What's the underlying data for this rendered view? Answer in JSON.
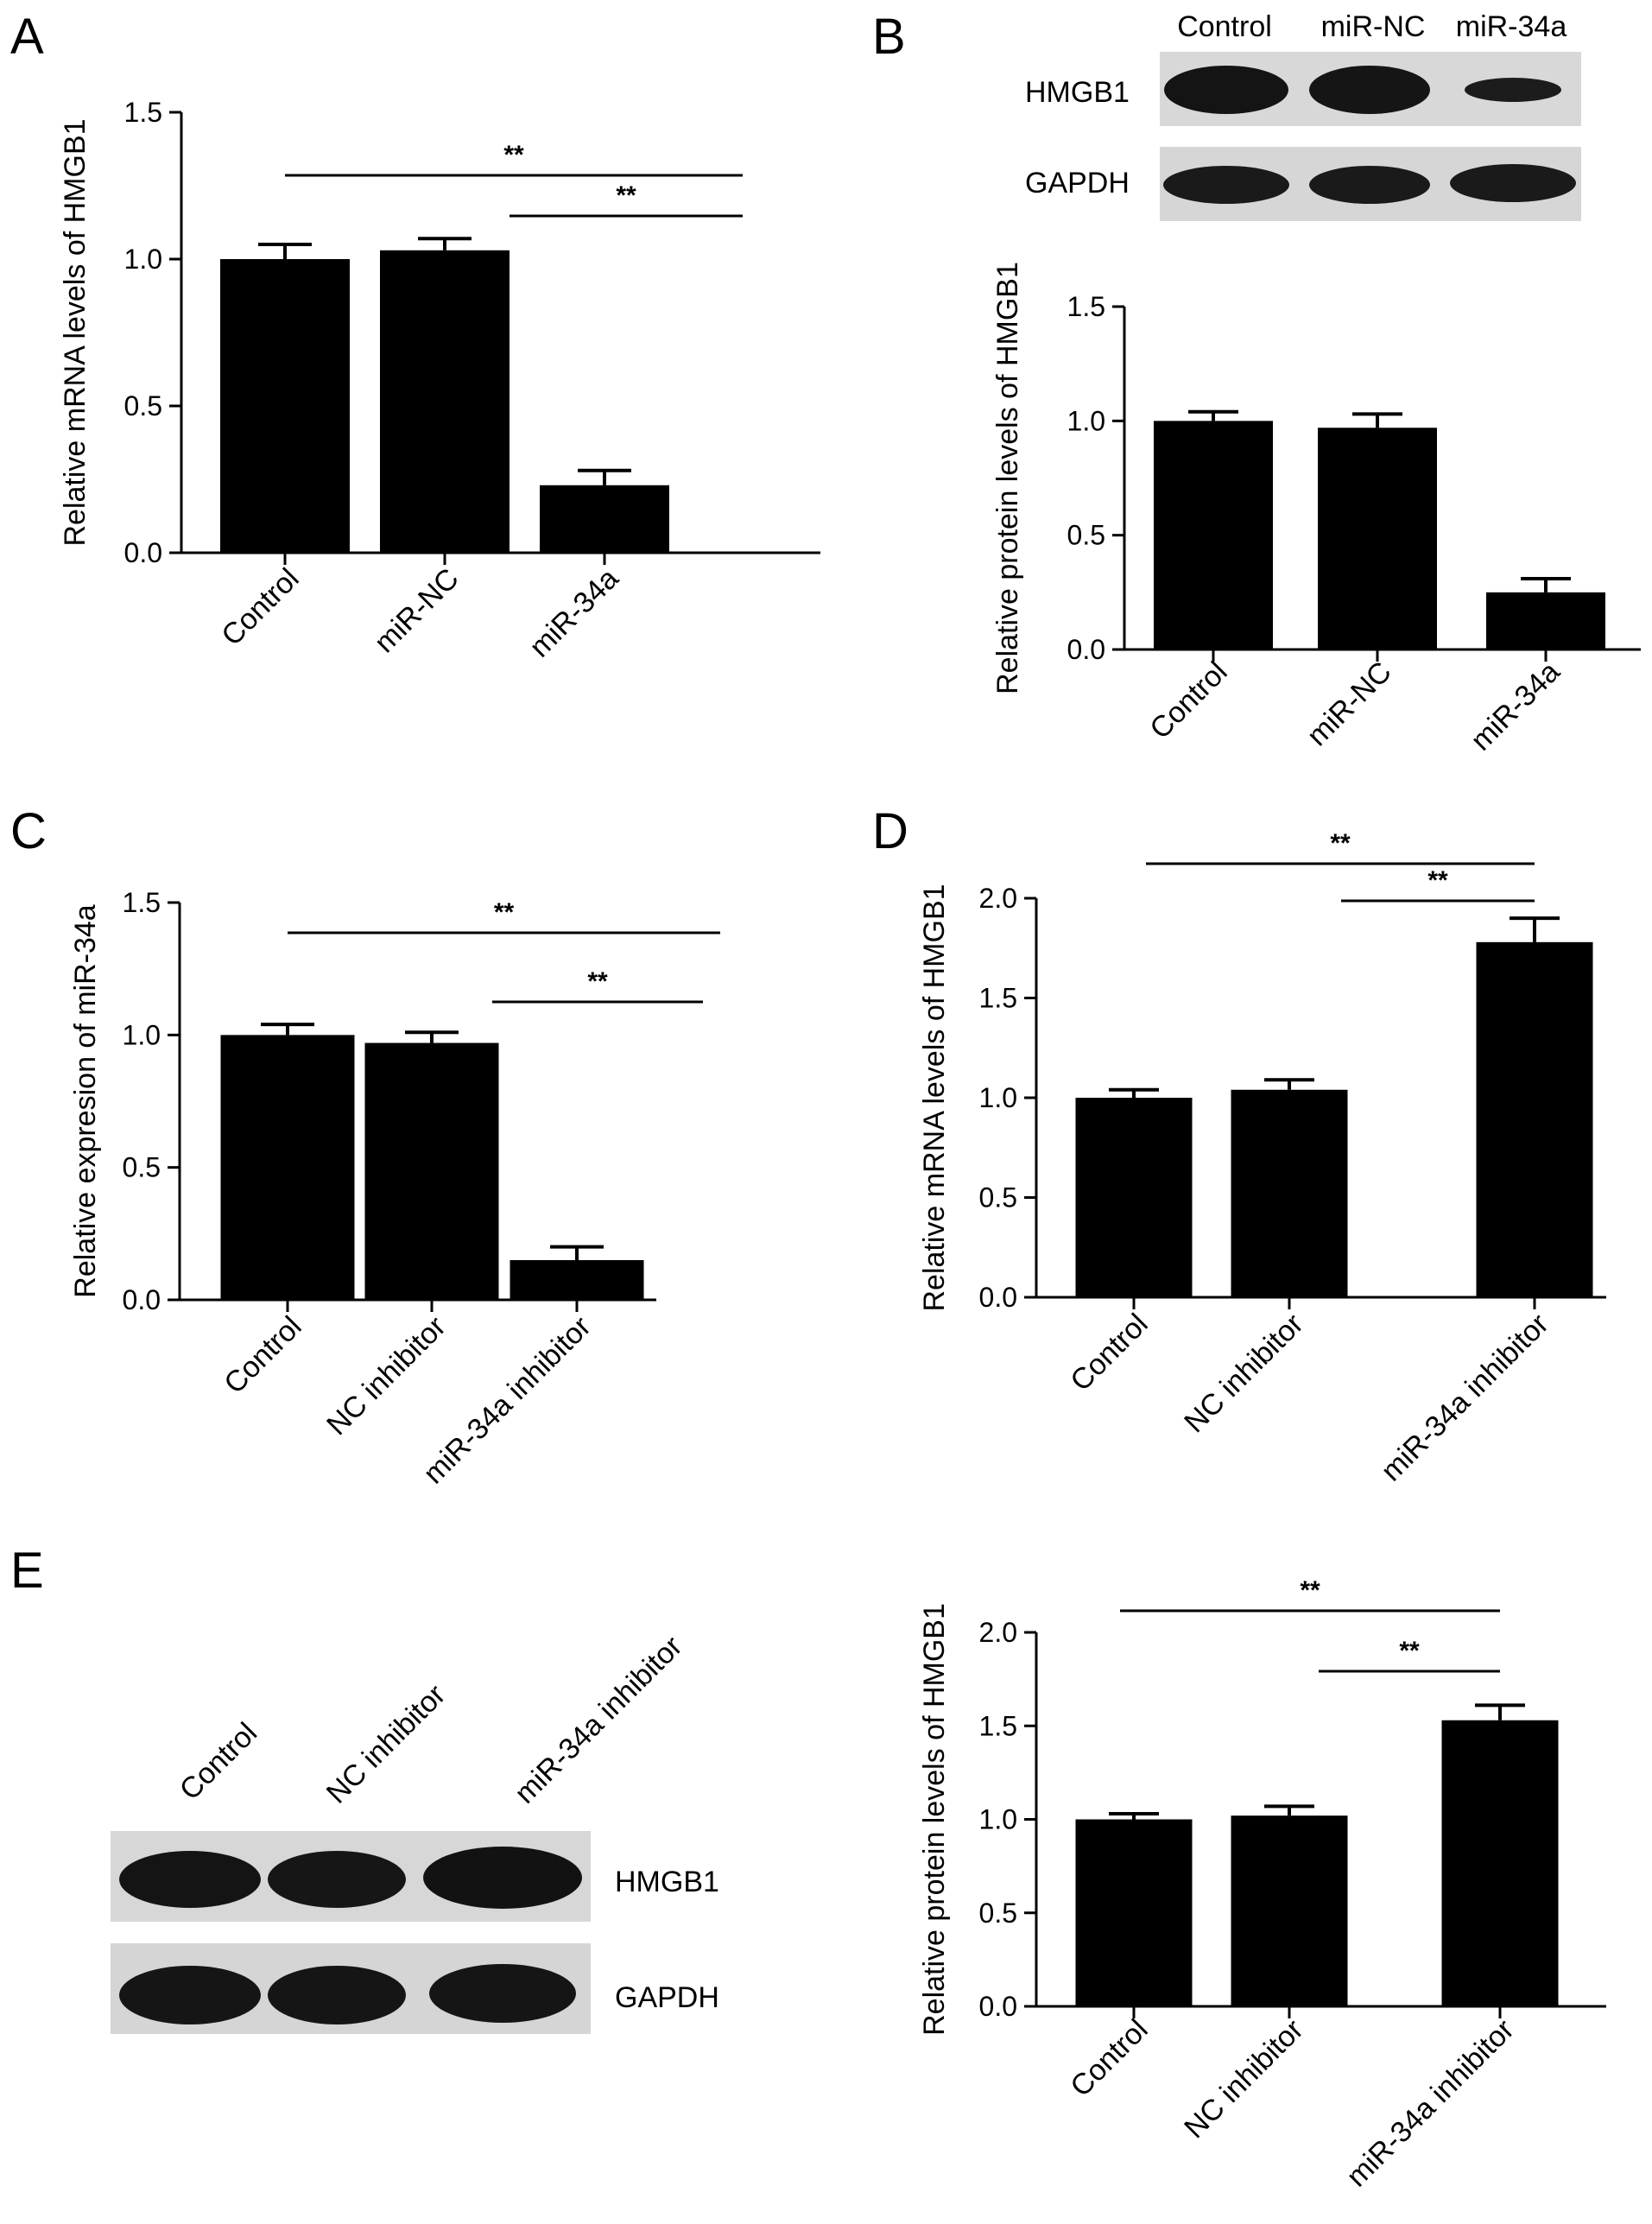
{
  "panel_letters": [
    "A",
    "B",
    "C",
    "D",
    "E"
  ],
  "blot_labels": {
    "B_lanes": [
      "Control",
      "miR-NC",
      "miR-34a"
    ],
    "B_rows": [
      "HMGB1",
      "GAPDH"
    ],
    "E_lanes": [
      "Control",
      "NC inhibitor",
      "miR-34a inhibitor"
    ],
    "E_rows": [
      "HMGB1",
      "GAPDH"
    ]
  },
  "chart_data": [
    {
      "id": "A",
      "type": "bar",
      "categories": [
        "Control",
        "miR-NC",
        "miR-34a"
      ],
      "values": [
        1.0,
        1.03,
        0.23
      ],
      "errors": [
        0.05,
        0.04,
        0.05
      ],
      "ylabel": "Relative mRNA levels of HMGB1",
      "ylim": [
        0,
        1.5
      ],
      "yticks": [
        "0.0",
        "0.5",
        "1.0",
        "1.5"
      ],
      "significance": [
        {
          "from": 0,
          "to": 2,
          "label": "**"
        },
        {
          "from": 1,
          "to": 2,
          "label": "**"
        }
      ],
      "bar_color": "#000000"
    },
    {
      "id": "B",
      "type": "bar",
      "categories": [
        "Control",
        "miR-NC",
        "miR-34a"
      ],
      "values": [
        1.0,
        0.97,
        0.25
      ],
      "errors": [
        0.04,
        0.06,
        0.06
      ],
      "ylabel": "Relative protein levels of HMGB1",
      "ylim": [
        0,
        1.5
      ],
      "yticks": [
        "0.0",
        "0.5",
        "1.0",
        "1.5"
      ],
      "significance": [],
      "bar_color": "#000000"
    },
    {
      "id": "C",
      "type": "bar",
      "categories": [
        "Control",
        "NC inhibitor",
        "miR-34a inhibitor"
      ],
      "values": [
        1.0,
        0.97,
        0.15
      ],
      "errors": [
        0.04,
        0.04,
        0.05
      ],
      "ylabel": "Relative expresion of miR-34a",
      "ylim": [
        0,
        1.5
      ],
      "yticks": [
        "0.0",
        "0.5",
        "1.0",
        "1.5"
      ],
      "significance": [
        {
          "from": 0,
          "to": 2,
          "label": "**"
        },
        {
          "from": 1,
          "to": 2,
          "label": "**"
        }
      ],
      "bar_color": "#000000"
    },
    {
      "id": "D",
      "type": "bar",
      "categories": [
        "Control",
        "NC inhibitor",
        "miR-34a inhibitor"
      ],
      "values": [
        1.0,
        1.04,
        1.78
      ],
      "errors": [
        0.04,
        0.05,
        0.12
      ],
      "ylabel": "Relative mRNA levels of HMGB1",
      "ylim": [
        0,
        2.0
      ],
      "yticks": [
        "0.0",
        "0.5",
        "1.0",
        "1.5",
        "2.0"
      ],
      "significance": [
        {
          "from": 0,
          "to": 2,
          "label": "**"
        },
        {
          "from": 1,
          "to": 2,
          "label": "**"
        }
      ],
      "bar_color": "#000000"
    },
    {
      "id": "E",
      "type": "bar",
      "categories": [
        "Control",
        "NC inhibitor",
        "miR-34a inhibitor"
      ],
      "values": [
        1.0,
        1.02,
        1.53
      ],
      "errors": [
        0.03,
        0.05,
        0.08
      ],
      "ylabel": "Relative protein levels of HMGB1",
      "ylim": [
        0,
        2.0
      ],
      "yticks": [
        "0.0",
        "0.5",
        "1.0",
        "1.5",
        "2.0"
      ],
      "significance": [
        {
          "from": 0,
          "to": 2,
          "label": "**"
        },
        {
          "from": 1,
          "to": 2,
          "label": "**"
        }
      ],
      "bar_color": "#000000"
    }
  ]
}
